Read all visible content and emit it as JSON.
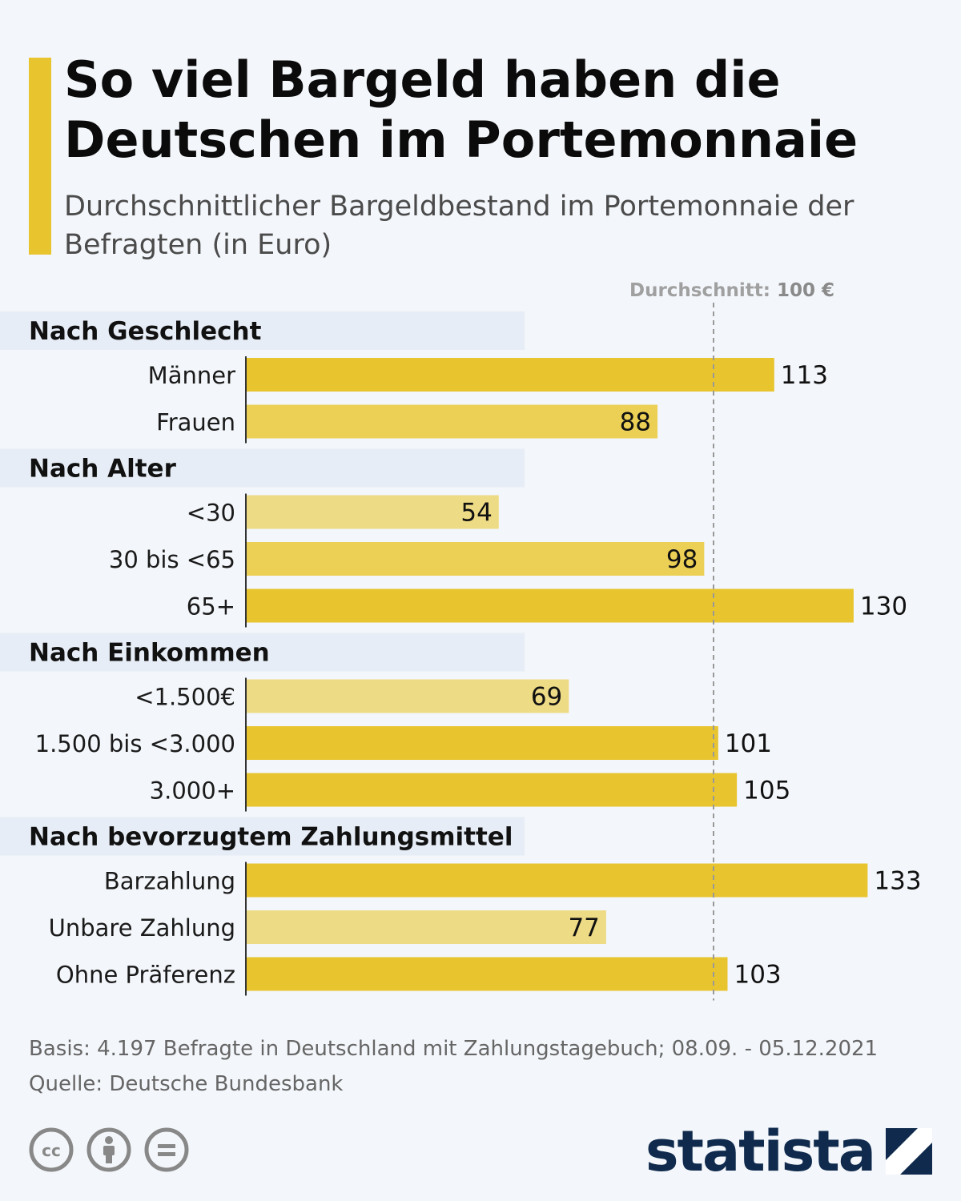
{
  "header": {
    "title": "So viel Bargeld haben die Deutschen im Portemonnaie",
    "subtitle": "Durchschnittlicher Bargeldbestand im Portemonnaie der Befragten (in Euro)"
  },
  "chart_data": {
    "type": "bar",
    "orientation": "horizontal",
    "title": "So viel Bargeld haben die Deutschen im Portemonnaie",
    "subtitle": "Durchschnittlicher Bargeldbestand im Portemonnaie der Befragten (in Euro)",
    "xlim": [
      0,
      150
    ],
    "reference_line": {
      "label": "Durchschnitt:",
      "value_label": "100 €",
      "value": 100
    },
    "groups": [
      {
        "name": "Nach Geschlecht",
        "categories": [
          "Männer",
          "Frauen"
        ],
        "values": [
          113,
          88
        ]
      },
      {
        "name": "Nach Alter",
        "categories": [
          "<30",
          "30 bis <65",
          "65+"
        ],
        "values": [
          54,
          98,
          130
        ]
      },
      {
        "name": "Nach Einkommen",
        "categories": [
          "<1.500€",
          "1.500 bis <3.000",
          "3.000+"
        ],
        "values": [
          69,
          101,
          105
        ]
      },
      {
        "name": "Nach bevorzugtem Zahlungsmittel",
        "categories": [
          "Barzahlung",
          "Unbare Zahlung",
          "Ohne Präferenz"
        ],
        "values": [
          133,
          77,
          103
        ]
      }
    ],
    "colors": {
      "high": "#e8c42e",
      "mid": "#ecd055",
      "low": "#eedb86",
      "accent": "#e8c42e",
      "group_band": "#e7edf6",
      "reference": "#999999"
    }
  },
  "footer": {
    "basis": "Basis: 4.197 Befragte in Deutschland mit Zahlungstagebuch; 08.09. - 05.12.2021",
    "source": "Quelle: Deutsche Bundesbank"
  },
  "branding": {
    "logo_text": "statista",
    "license_icons": [
      "cc-icon",
      "attribution-icon",
      "no-derivatives-icon"
    ]
  }
}
